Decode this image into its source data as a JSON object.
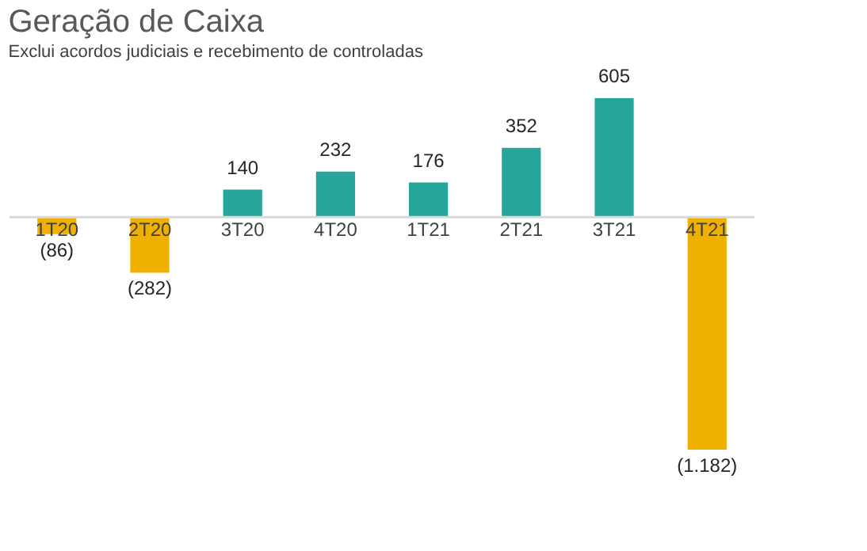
{
  "chart_data": {
    "type": "bar",
    "title": "Geração de Caixa",
    "subtitle": "Exclui acordos judiciais e recebimento de controladas",
    "categories": [
      "1T20",
      "2T20",
      "3T20",
      "4T20",
      "1T21",
      "2T21",
      "3T21",
      "4T21"
    ],
    "values": [
      -86,
      -282,
      140,
      232,
      176,
      352,
      605,
      -1182
    ],
    "colors": [
      "#f0b000",
      "#f0b000",
      "#26a69a",
      "#26a69a",
      "#26a69a",
      "#26a69a",
      "#26a69a",
      "#f0b000"
    ],
    "value_labels": [
      "(86)",
      "(282)",
      "140",
      "232",
      "176",
      "352",
      "605",
      "(1.182)"
    ]
  }
}
